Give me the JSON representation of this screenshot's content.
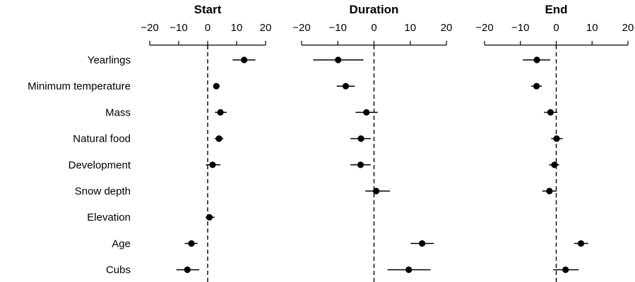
{
  "chart_data": {
    "type": "scatter",
    "style": "forest-plot",
    "colors": {
      "points": "#000000",
      "axes": "#000000",
      "reference_line": "#000000",
      "background": "#ffffff"
    },
    "categories": [
      "Yearlings",
      "Minimum temperature",
      "Mass",
      "Natural food",
      "Development",
      "Snow depth",
      "Elevation",
      "Age",
      "Cubs"
    ],
    "reference_line": 0,
    "panels": [
      {
        "title": "Start",
        "xlim": [
          -20,
          20
        ],
        "xticks": [
          -20,
          -10,
          0,
          10,
          20
        ],
        "xtick_labels": [
          "−20",
          "−10",
          "0",
          "10",
          "20"
        ],
        "estimates": [
          12.6,
          3.0,
          4.4,
          3.9,
          1.7,
          null,
          0.6,
          -5.6,
          -7.0
        ],
        "lower": [
          8.6,
          1.9,
          2.5,
          2.4,
          -0.6,
          null,
          -0.7,
          -7.9,
          -10.8
        ],
        "upper": [
          16.5,
          4.1,
          6.6,
          5.4,
          4.4,
          null,
          2.4,
          -3.5,
          -2.9
        ]
      },
      {
        "title": "Duration",
        "xlim": [
          -20,
          20
        ],
        "xticks": [
          -20,
          -10,
          0,
          10,
          20
        ],
        "xtick_labels": [
          "−20",
          "−10",
          "0",
          "10",
          "20"
        ],
        "estimates": [
          -9.9,
          -7.8,
          -2.1,
          -3.6,
          -3.7,
          0.6,
          null,
          13.3,
          9.6
        ],
        "lower": [
          -16.8,
          -10.3,
          -5.1,
          -6.5,
          -6.5,
          -2.4,
          null,
          10.1,
          3.7
        ],
        "upper": [
          -2.9,
          -5.3,
          1.0,
          -0.9,
          -0.9,
          4.4,
          null,
          16.5,
          15.6
        ]
      },
      {
        "title": "End",
        "xlim": [
          -20,
          20
        ],
        "xticks": [
          -20,
          -10,
          0,
          10,
          20
        ],
        "xtick_labels": [
          "−20",
          "−10",
          "0",
          "10",
          "20"
        ],
        "estimates": [
          -5.4,
          -5.5,
          -1.6,
          0.1,
          -0.5,
          -1.9,
          null,
          6.9,
          2.6
        ],
        "lower": [
          -9.3,
          -7.0,
          -3.4,
          -1.4,
          -2.0,
          -3.9,
          null,
          5.0,
          -0.8
        ],
        "upper": [
          -1.7,
          -4.0,
          0.3,
          1.8,
          0.8,
          0.1,
          null,
          8.9,
          6.2
        ]
      }
    ]
  }
}
